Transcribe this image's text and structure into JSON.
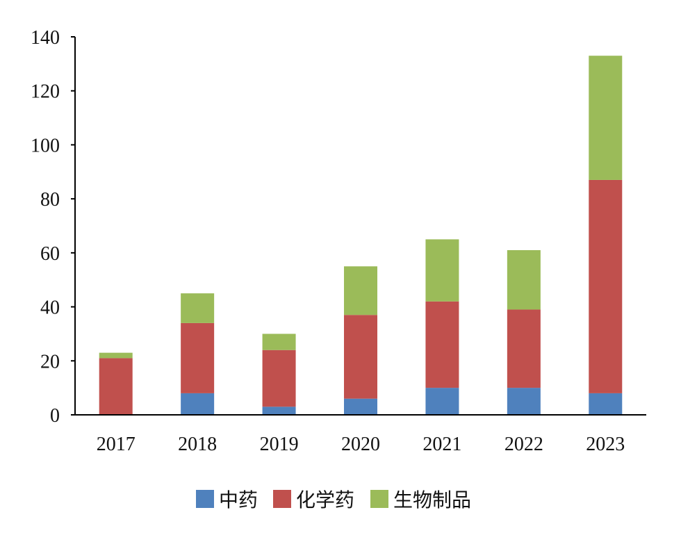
{
  "chart_data": {
    "type": "bar",
    "stacked": true,
    "categories": [
      "2017",
      "2018",
      "2019",
      "2020",
      "2021",
      "2022",
      "2023"
    ],
    "series": [
      {
        "name": "中药",
        "color": "#4F81BD",
        "values": [
          0,
          8,
          3,
          6,
          10,
          10,
          8
        ]
      },
      {
        "name": "化学药",
        "color": "#C0504D",
        "values": [
          21,
          26,
          21,
          31,
          32,
          29,
          79
        ]
      },
      {
        "name": "生物制品",
        "color": "#9BBB59",
        "values": [
          2,
          11,
          6,
          18,
          23,
          22,
          46
        ]
      }
    ],
    "ylim": [
      0,
      140
    ],
    "yticks": [
      "0",
      "20",
      "40",
      "60",
      "80",
      "100",
      "120",
      "140"
    ],
    "grid": false,
    "legend_position": "bottom",
    "title": "",
    "xlabel": "",
    "ylabel": ""
  }
}
